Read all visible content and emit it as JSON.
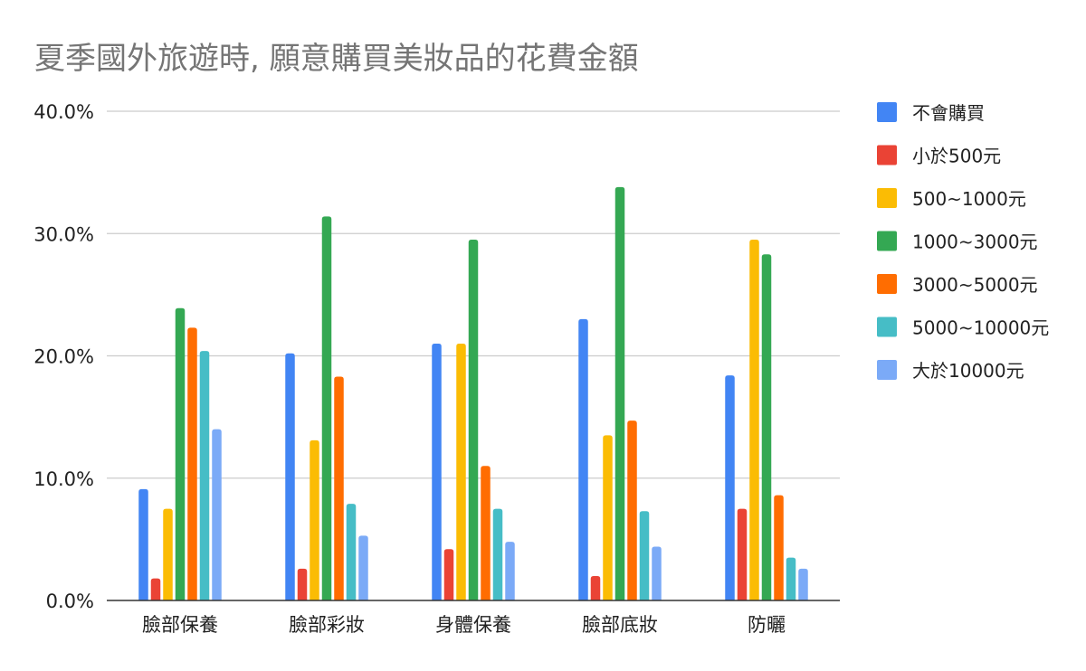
{
  "chart_data": {
    "type": "bar",
    "title": "夏季國外旅遊時, 願意購買美妝品的花費金額",
    "xlabel": "",
    "ylabel": "",
    "ylim": [
      0,
      40
    ],
    "y_ticks": [
      "0.0%",
      "10.0%",
      "20.0%",
      "30.0%",
      "40.0%"
    ],
    "y_tick_values": [
      0,
      10,
      20,
      30,
      40
    ],
    "grid": true,
    "legend_position": "right",
    "categories": [
      "臉部保養",
      "臉部彩妝",
      "身體保養",
      "臉部底妝",
      "防曬"
    ],
    "series": [
      {
        "name": "不會購買",
        "color": "#4285f4",
        "values": [
          9.1,
          20.2,
          21.0,
          23.0,
          18.4
        ]
      },
      {
        "name": "小於500元",
        "color": "#ea4335",
        "values": [
          1.8,
          2.6,
          4.2,
          2.0,
          7.5
        ]
      },
      {
        "name": "500~1000元",
        "color": "#fbbc04",
        "values": [
          7.5,
          13.1,
          21.0,
          13.5,
          29.5
        ]
      },
      {
        "name": "1000~3000元",
        "color": "#34a853",
        "values": [
          23.9,
          31.4,
          29.5,
          33.8,
          28.3
        ]
      },
      {
        "name": "3000~5000元",
        "color": "#ff6d01",
        "values": [
          22.3,
          18.3,
          11.0,
          14.7,
          8.6
        ]
      },
      {
        "name": "5000~10000元",
        "color": "#46bdc6",
        "values": [
          20.4,
          7.9,
          7.5,
          7.3,
          3.5
        ]
      },
      {
        "name": "大於10000元",
        "color": "#7baaf7",
        "values": [
          14.0,
          5.3,
          4.8,
          4.4,
          2.6
        ]
      }
    ]
  }
}
